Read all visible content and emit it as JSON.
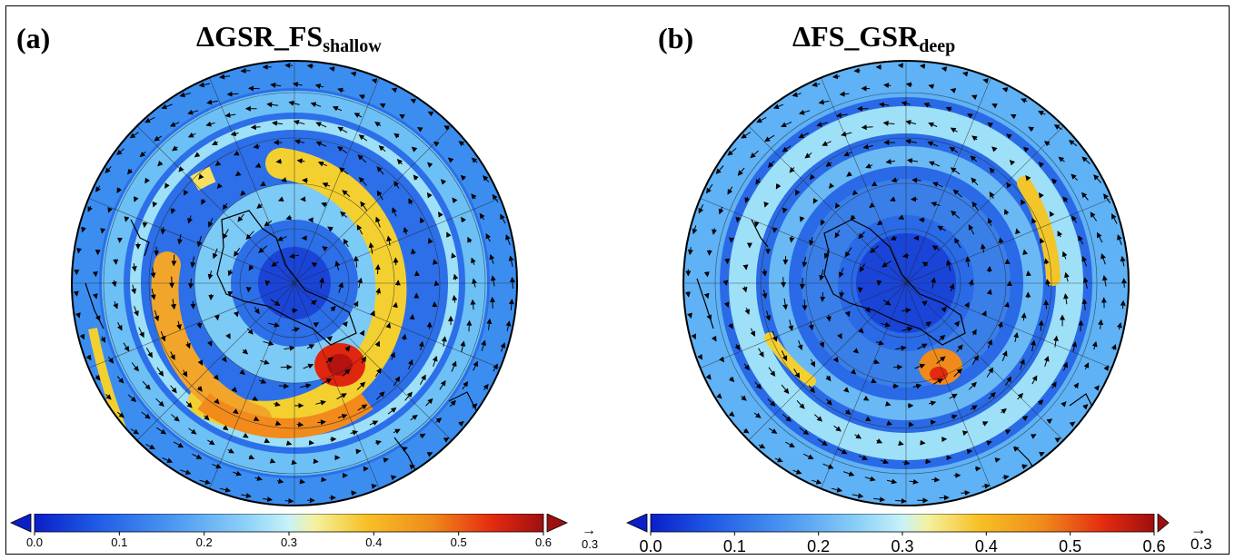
{
  "panels": [
    {
      "label": "(a)",
      "title_main": "ΔGSR_FS",
      "title_sub": "shallow",
      "colorbar_ticks": [
        "0.0",
        "0.1",
        "0.2",
        "0.3",
        "0.4",
        "0.5",
        "0.6"
      ],
      "reference_arrow_value": "0.3"
    },
    {
      "label": "(b)",
      "title_main": "ΔFS_GSR",
      "title_sub": "deep",
      "colorbar_ticks": [
        "0.0",
        "0.1",
        "0.2",
        "0.3",
        "0.4",
        "0.5",
        "0.6"
      ],
      "reference_arrow_value": "0.3"
    }
  ],
  "colorscale": {
    "min": 0.0,
    "max": 0.6,
    "colors": [
      "#0a1fc8",
      "#1f5ae6",
      "#4f9bf2",
      "#8fd3f8",
      "#c8f2f8",
      "#f4f2a0",
      "#f7c227",
      "#f08a1a",
      "#e42b10",
      "#9e0f0f"
    ],
    "extend": "both"
  }
}
